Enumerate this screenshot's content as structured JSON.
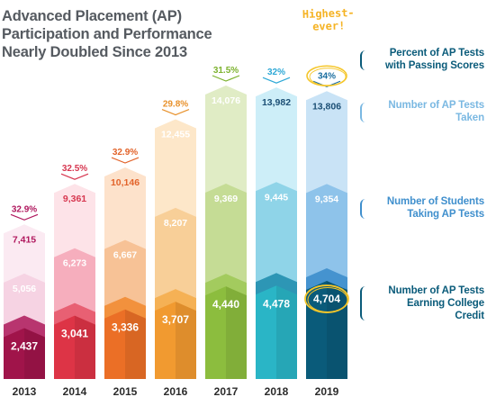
{
  "title_lines": [
    "Advanced Placement (AP)",
    "Participation and Performance",
    "Nearly Doubled Since 2013"
  ],
  "annotation_lines": [
    "Highest-",
    "ever!"
  ],
  "legend": {
    "pct_passing": [
      "Percent of AP Tests",
      "with Passing Scores"
    ],
    "tests_taken": [
      "Number of AP Tests",
      "Taken"
    ],
    "students": [
      "Number of Students",
      "Taking AP Tests"
    ],
    "college_credit": [
      "Number of AP Tests",
      "Earning College",
      "Credit"
    ]
  },
  "colors": {
    "title": "#555a60",
    "annotation": "#f5b324",
    "legend_pct": "#0a5b7a",
    "legend_taken": "#7ab8e2",
    "legend_students": "#3f8fcd",
    "legend_credit": "#0a5b7a"
  },
  "chart_data": {
    "type": "bar",
    "layout": "stacked-arrows",
    "categories": [
      "2013",
      "2014",
      "2015",
      "2016",
      "2017",
      "2018",
      "2019"
    ],
    "series": [
      {
        "name": "Number of AP Tests Earning College Credit",
        "values": [
          2437,
          3041,
          3336,
          3707,
          4440,
          4478,
          4704
        ],
        "labels": [
          "2,437",
          "3,041",
          "3,336",
          "3,707",
          "4,440",
          "4,478",
          "4,704"
        ]
      },
      {
        "name": "Number of Students Taking AP Tests",
        "values": [
          5056,
          6273,
          6667,
          8207,
          9369,
          9445,
          9354
        ],
        "labels": [
          "5,056",
          "6,273",
          "6,667",
          "8,207",
          "9,369",
          "9,445",
          "9,354"
        ]
      },
      {
        "name": "Number of AP Tests Taken",
        "values": [
          7415,
          9361,
          10146,
          12455,
          14076,
          13982,
          13806
        ],
        "labels": [
          "7,415",
          "9,361",
          "10,146",
          "12,455",
          "14,076",
          "13,982",
          "13,806"
        ]
      },
      {
        "name": "Percent of AP Tests with Passing Scores",
        "values": [
          32.9,
          32.5,
          32.9,
          29.8,
          31.5,
          32,
          34
        ],
        "labels": [
          "32.9%",
          "32.5%",
          "32.9%",
          "29.8%",
          "31.5%",
          "32%",
          "34%"
        ]
      }
    ],
    "ylim": [
      0,
      14076
    ],
    "year_colors": [
      {
        "dark": "#a0144a",
        "mid": "#b8356f",
        "light": "#f6d3e3",
        "pale": "#fbeaf2",
        "text": "#b0185e"
      },
      {
        "dark": "#dd3446",
        "mid": "#e86073",
        "light": "#f6aebd",
        "pale": "#fde3e8",
        "text": "#d73750"
      },
      {
        "dark": "#eb6f26",
        "mid": "#f2913d",
        "light": "#f7c296",
        "pale": "#fde2cb",
        "text": "#e2632a"
      },
      {
        "dark": "#f19a30",
        "mid": "#f5b155",
        "light": "#f8cf98",
        "pale": "#fde7c9",
        "text": "#e8912b"
      },
      {
        "dark": "#8cbd3e",
        "mid": "#a3cb5e",
        "light": "#c5dc95",
        "pale": "#e0ecc5",
        "text": "#7cb22e"
      },
      {
        "dark": "#2ab5c6",
        "mid": "#2d96b5",
        "light": "#8fd4e8",
        "pale": "#cdeef8",
        "text": "#2ea8d6"
      },
      {
        "dark": "#0a5b7a",
        "mid": "#4593cf",
        "light": "#8ec3ea",
        "pale": "#c9e3f6",
        "text": "#1c6fa0"
      }
    ],
    "highlight_index": 6
  }
}
